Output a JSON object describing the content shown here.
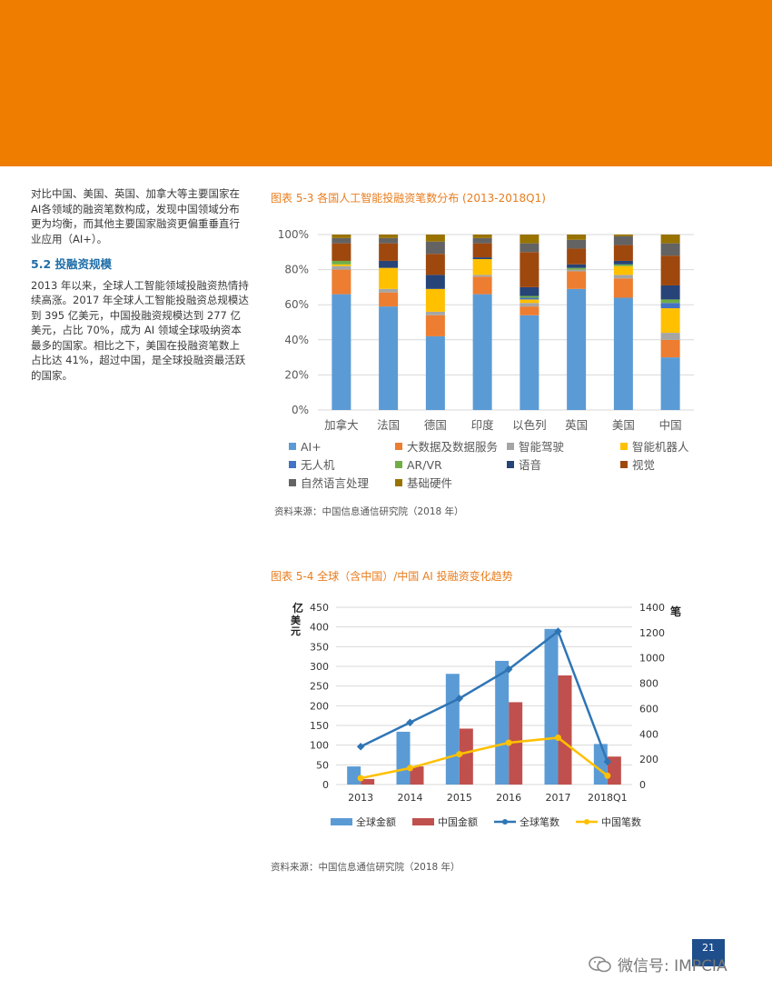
{
  "colors": {
    "banner": "#ef7d00",
    "heading": "#1f6ea8",
    "figtitle": "#e87d1e",
    "page_box": "#1f4e8c"
  },
  "left_text": {
    "intro": "对比中国、美国、英国、加拿大等主要国家在AI各领域的融资笔数构成，发现中国领域分布更为均衡，而其他主要国家融资更偏重垂直行业应用（AI+）。",
    "section_title": "5.2 投融资规模",
    "body": "2013 年以来，全球人工智能领域投融资热情持续高涨。2017 年全球人工智能投融资总规模达到 395 亿美元，中国投融资规模达到 277 亿美元，占比 70%，成为 AI 领域全球吸纳资本最多的国家。相比之下，美国在投融资笔数上占比达 41%，超过中国，是全球投融资最活跃的国家。"
  },
  "figure1": {
    "title": "图表 5-3 各国人工智能投融资笔数分布 (2013-2018Q1)",
    "source": "资料来源：中国信息通信研究院（2018 年）"
  },
  "figure2": {
    "title": "图表 5-4 全球（含中国）/中国 AI 投融资变化趋势",
    "source": "资料来源：中国信息通信研究院（2018 年）"
  },
  "page_number": "21",
  "watermark": "微信号: IMPCIA",
  "chart_data": [
    {
      "type": "bar",
      "stacked": true,
      "title": "图表 5-3 各国人工智能投融资笔数分布 (2013-2018Q1)",
      "categories": [
        "加拿大",
        "法国",
        "德国",
        "印度",
        "以色列",
        "英国",
        "美国",
        "中国"
      ],
      "ylim": [
        0,
        100
      ],
      "yticks": [
        "0%",
        "20%",
        "40%",
        "60%",
        "80%",
        "100%"
      ],
      "series": [
        {
          "name": "AI+",
          "color": "#5b9bd5",
          "values": [
            66,
            59,
            42,
            66,
            54,
            69,
            64,
            30
          ]
        },
        {
          "name": "大数据及数据服务",
          "color": "#ed7d31",
          "values": [
            14,
            8,
            12,
            10,
            5,
            10,
            11,
            10
          ]
        },
        {
          "name": "智能驾驶",
          "color": "#a5a5a5",
          "values": [
            2,
            2,
            2,
            1,
            2,
            1,
            2,
            4
          ]
        },
        {
          "name": "智能机器人",
          "color": "#ffc000",
          "values": [
            1,
            12,
            13,
            9,
            2,
            0,
            5,
            14
          ]
        },
        {
          "name": "无人机",
          "color": "#4472c4",
          "values": [
            0,
            0,
            0,
            0,
            1,
            0,
            0,
            3
          ]
        },
        {
          "name": "AR/VR",
          "color": "#70ad47",
          "values": [
            2,
            0,
            0,
            0,
            1,
            1,
            1,
            2
          ]
        },
        {
          "name": "语音",
          "color": "#264478",
          "values": [
            0,
            4,
            8,
            1,
            5,
            2,
            2,
            8
          ]
        },
        {
          "name": "视觉",
          "color": "#9e480e",
          "values": [
            10,
            10,
            12,
            8,
            20,
            9,
            9,
            17
          ]
        },
        {
          "name": "自然语言处理",
          "color": "#636363",
          "values": [
            3,
            3,
            7,
            3,
            5,
            5,
            5,
            7
          ]
        },
        {
          "name": "基础硬件",
          "color": "#997300",
          "values": [
            2,
            2,
            4,
            2,
            5,
            3,
            1,
            5
          ]
        }
      ]
    },
    {
      "type": "bar",
      "combo": "bar+line (dual axis)",
      "title": "图表 5-4 全球（含中国）/中国 AI 投融资变化趋势",
      "categories": [
        "2013",
        "2014",
        "2015",
        "2016",
        "2017",
        "2018Q1"
      ],
      "ylabel_left": "亿美元",
      "ylabel_right": "笔",
      "ylim_left": [
        0,
        450
      ],
      "ylim_right": [
        0,
        1400
      ],
      "yticks_left": [
        "0",
        "50",
        "100",
        "150",
        "200",
        "250",
        "300",
        "350",
        "400",
        "450"
      ],
      "yticks_right": [
        "0",
        "200",
        "400",
        "600",
        "800",
        "1000",
        "1200",
        "1400"
      ],
      "series": [
        {
          "name": "全球金额",
          "type": "bar",
          "axis": "left",
          "color": "#5b9bd5",
          "values": [
            46,
            134,
            281,
            314,
            395,
            103
          ]
        },
        {
          "name": "中国金额",
          "type": "bar",
          "axis": "left",
          "color": "#c0504d",
          "values": [
            14,
            46,
            142,
            209,
            277,
            71
          ]
        },
        {
          "name": "全球笔数",
          "type": "line",
          "axis": "right",
          "color": "#2e75b6",
          "values": [
            300,
            490,
            680,
            910,
            1210,
            180
          ]
        },
        {
          "name": "中国笔数",
          "type": "line",
          "axis": "right",
          "color": "#ffc000",
          "values": [
            50,
            130,
            240,
            330,
            370,
            70
          ]
        }
      ]
    }
  ]
}
